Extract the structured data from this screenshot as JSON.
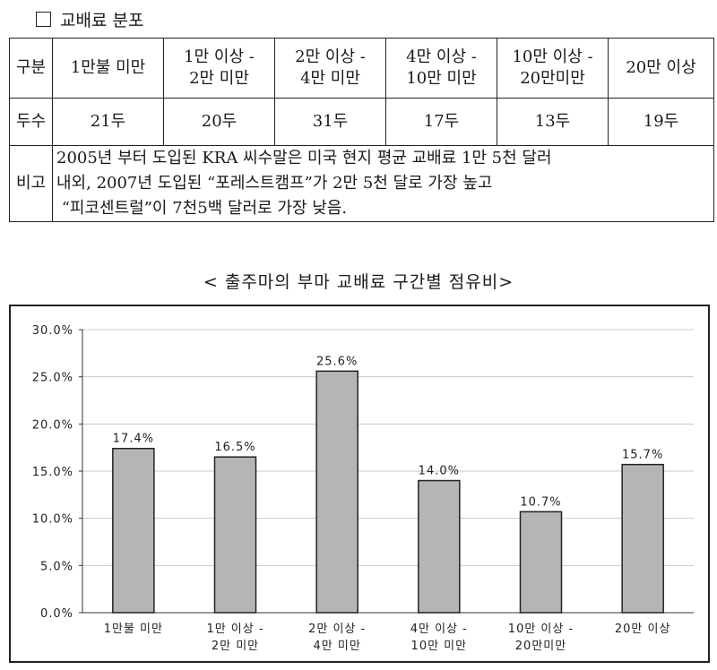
{
  "heading": "교배료 분포",
  "table": {
    "row1_label": "구분",
    "categories": [
      "1만불 미만",
      "1만 이상 -\n2만 미만",
      "2만 이상 -\n4만 미만",
      "4만 이상 -\n10만 미만",
      "10만 이상 -\n20만미만",
      "20만 이상"
    ],
    "row2_label": "두수",
    "counts": [
      "21두",
      "20두",
      "31두",
      "17두",
      "13두",
      "19두"
    ],
    "row3_label": "비고",
    "note_lines": [
      "2005년 부터 도입된 KRA 씨수말은 미국 현지 평균 교배료 1만 5천 달러",
      "내외, 2007년 도입된 “포레스트캠프”가 2만 5천 달로 가장 높고",
      " “피코센트럴”이 7천5백 달러로 가장 낮음."
    ]
  },
  "chart_data": {
    "type": "bar",
    "title": "< 출주마의 부마 교배료 구간별 점유비>",
    "categories": [
      "1만불 미만",
      "1만 이상 -\n2만 미만",
      "2만 이상 -\n4만 미만",
      "4만 이상 -\n10만 미만",
      "10만 이상 -\n20만미만",
      "20만 이상"
    ],
    "values": [
      17.4,
      16.5,
      25.6,
      14.0,
      10.7,
      15.7
    ],
    "value_labels": [
      "17.4%",
      "16.5%",
      "25.6%",
      "14.0%",
      "10.7%",
      "15.7%"
    ],
    "ylim": [
      0,
      30
    ],
    "yticks": [
      "0.0%",
      "5.0%",
      "10.0%",
      "15.0%",
      "20.0%",
      "25.0%",
      "30.0%"
    ],
    "grid": true,
    "bar_color": "#b5b5b5",
    "grid_color": "#c8c8c8"
  }
}
